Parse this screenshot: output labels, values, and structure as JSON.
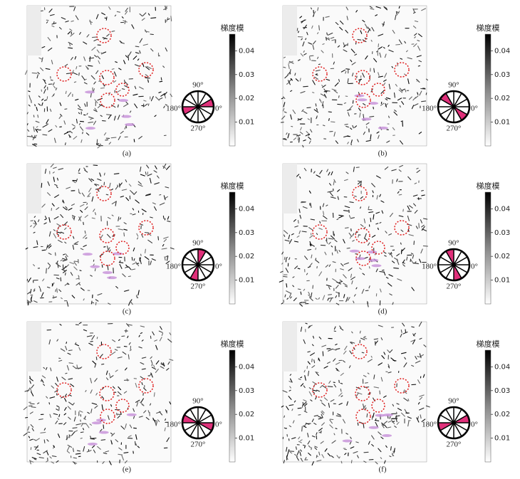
{
  "panels": [
    {
      "caption": "(a)",
      "colorbar": {
        "title": "梯度模",
        "lim": [
          0,
          0.047
        ],
        "ticks": [
          0.01,
          0.02,
          0.03,
          0.04
        ]
      },
      "rose_labels": {
        "top": "90°",
        "left": "180°",
        "right": "0°",
        "bottom": "270°"
      }
    },
    {
      "caption": "(b)",
      "colorbar": {
        "title": "梯度模",
        "lim": [
          0,
          0.047
        ],
        "ticks": [
          0.01,
          0.02,
          0.03,
          0.04
        ]
      },
      "rose_labels": {
        "top": "90°",
        "left": "180°",
        "right": "0°",
        "bottom": "270°"
      }
    },
    {
      "caption": "(c)",
      "colorbar": {
        "title": "梯度模",
        "lim": [
          0,
          0.047
        ],
        "ticks": [
          0.01,
          0.02,
          0.03,
          0.04
        ]
      },
      "rose_labels": {
        "top": "90°",
        "left": "180°",
        "right": "0°",
        "bottom": "270°"
      }
    },
    {
      "caption": "(d)",
      "colorbar": {
        "title": "梯度模",
        "lim": [
          0,
          0.047
        ],
        "ticks": [
          0.01,
          0.02,
          0.03,
          0.04
        ]
      },
      "rose_labels": {
        "top": "90°",
        "left": "180°",
        "right": "0°",
        "bottom": "270°"
      }
    },
    {
      "caption": "(e)",
      "colorbar": {
        "title": "梯度模",
        "lim": [
          0,
          0.047
        ],
        "ticks": [
          0.01,
          0.02,
          0.03,
          0.04
        ]
      },
      "rose_labels": {
        "top": "90°",
        "left": "180°",
        "right": "0°",
        "bottom": "270°"
      }
    },
    {
      "caption": "(f)",
      "colorbar": {
        "title": "梯度模",
        "lim": [
          0,
          0.047
        ],
        "ticks": [
          0.01,
          0.02,
          0.03,
          0.04
        ]
      },
      "rose_labels": {
        "top": "90°",
        "left": "180°",
        "right": "0°",
        "bottom": "270°"
      }
    }
  ]
}
